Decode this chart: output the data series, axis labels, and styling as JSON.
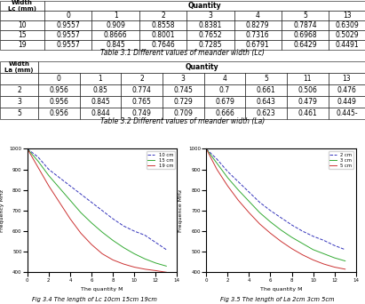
{
  "table1_title": "Table 3.1 Different values of meander width (Lc)",
  "table2_title": "Table 3.2 Different values of meander width (La)",
  "table1_header_row2": [
    "Lc (mm)",
    "0",
    "1",
    "2",
    "3",
    "4",
    "5",
    "13"
  ],
  "table1_rows": [
    [
      "10",
      "0.9557",
      "0.909",
      "0.8558",
      "0.8381",
      "0.8279",
      "0.7874",
      "0.6309"
    ],
    [
      "15",
      "0.9557",
      "0.8666",
      "0.8001",
      "0.7652",
      "0.7316",
      "0.6968",
      "0.5029"
    ],
    [
      "19",
      "0.9557",
      "0.845",
      "0.7646",
      "0.7285",
      "0.6791",
      "0.6429",
      "0.4491"
    ]
  ],
  "table2_header_row2": [
    "La (mm)",
    "0",
    "1",
    "2",
    "3",
    "4",
    "5",
    "11",
    "13"
  ],
  "table2_rows": [
    [
      "2",
      "0.956",
      "0.85",
      "0.774",
      "0.745",
      "0.7",
      "0.661",
      "0.506",
      "0.476"
    ],
    [
      "3",
      "0.956",
      "0.845",
      "0.765",
      "0.729",
      "0.679",
      "0.643",
      "0.479",
      "0.449"
    ],
    [
      "5",
      "0.956",
      "0.844",
      "0.749",
      "0.709",
      "0.666",
      "0.623",
      "0.461",
      "0.445-"
    ]
  ],
  "fig1_caption": "Fig 3.4 The length of Lc 10cm 15cm 19cm",
  "fig2_caption": "Fig 3.5 The length of La 2cm 3cm 5cm",
  "fig1_xlabel": "The quantity M",
  "fig1_ylabel": "Frequency MHz",
  "fig2_xlabel": "The quantity M",
  "fig2_ylabel": "Frequence MHz",
  "x_vals": [
    0,
    1,
    2,
    3,
    4,
    5,
    6,
    7,
    8,
    9,
    10,
    11,
    12,
    13
  ],
  "lc_10_y": [
    1000,
    960,
    900,
    860,
    820,
    780,
    740,
    700,
    660,
    625,
    600,
    580,
    545,
    510
  ],
  "lc_15_y": [
    1000,
    940,
    870,
    810,
    750,
    690,
    640,
    595,
    555,
    520,
    490,
    465,
    445,
    430
  ],
  "lc_19_y": [
    1000,
    910,
    820,
    740,
    660,
    590,
    535,
    490,
    460,
    440,
    425,
    415,
    408,
    400
  ],
  "la_2_y": [
    1000,
    950,
    890,
    840,
    790,
    740,
    700,
    665,
    630,
    600,
    575,
    555,
    530,
    510
  ],
  "la_3_y": [
    1000,
    930,
    860,
    800,
    745,
    690,
    645,
    605,
    570,
    540,
    510,
    490,
    470,
    455
  ],
  "la_5_y": [
    1000,
    900,
    820,
    750,
    690,
    635,
    590,
    550,
    515,
    485,
    460,
    440,
    425,
    415
  ],
  "color_blue": "#3333bb",
  "color_green": "#33aa33",
  "color_red": "#cc3333",
  "fig1_legend": [
    "10 cm",
    "15 cm",
    "19 cm"
  ],
  "fig2_legend": [
    "2 cm",
    "3 cm",
    "5 cm"
  ],
  "ylim": [
    400,
    1000
  ],
  "xlim": [
    0,
    14
  ]
}
